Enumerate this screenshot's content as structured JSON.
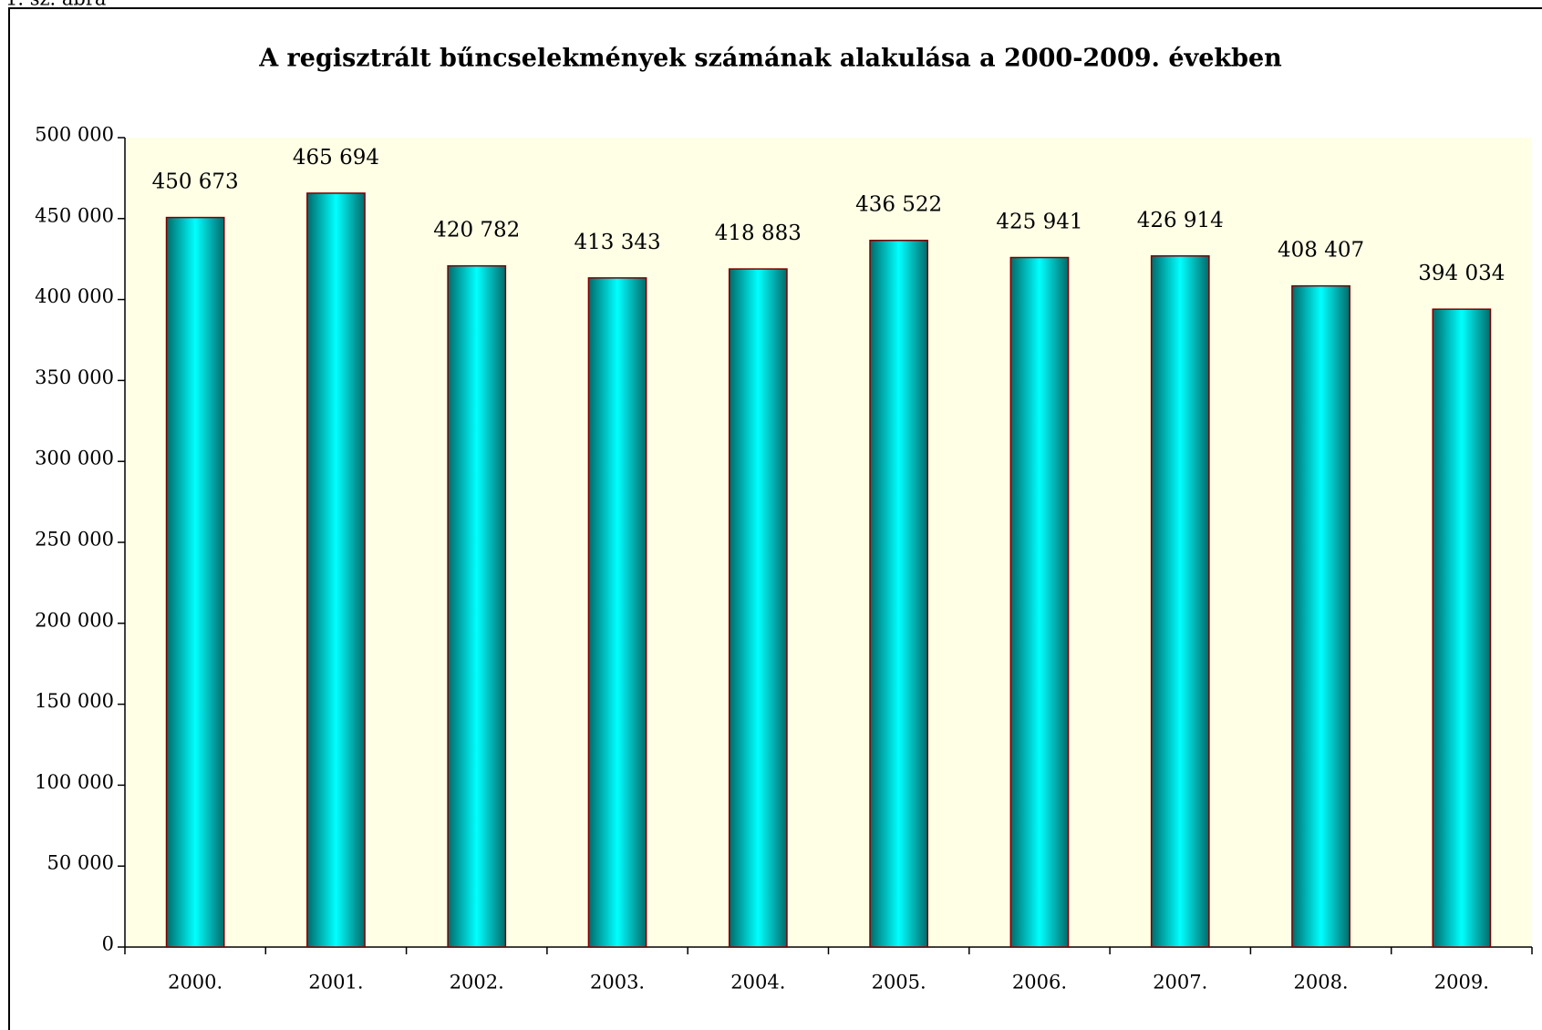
{
  "caption": "1. sz. ábra",
  "chart_data": {
    "type": "bar",
    "title": "A regisztrált bűncselekmények számának alakulása a 2000-2009. években",
    "categories": [
      "2000.",
      "2001.",
      "2002.",
      "2003.",
      "2004.",
      "2005.",
      "2006.",
      "2007.",
      "2008.",
      "2009."
    ],
    "values": [
      450673,
      465694,
      420782,
      413343,
      418883,
      436522,
      425941,
      426914,
      408407,
      394034
    ],
    "value_labels": [
      "450 673",
      "465 694",
      "420 782",
      "413 343",
      "418 883",
      "436 522",
      "425 941",
      "426 914",
      "408 407",
      "394 034"
    ],
    "color": "#00e5e5",
    "ylim": [
      0,
      500000
    ],
    "yticks": [
      {
        "value": 0,
        "label": "0"
      },
      {
        "value": 50000,
        "label": "50 000"
      },
      {
        "value": 100000,
        "label": "100 000"
      },
      {
        "value": 150000,
        "label": "150 000"
      },
      {
        "value": 200000,
        "label": "200 000"
      },
      {
        "value": 250000,
        "label": "250 000"
      },
      {
        "value": 300000,
        "label": "300 000"
      },
      {
        "value": 350000,
        "label": "350 000"
      },
      {
        "value": 400000,
        "label": "400 000"
      },
      {
        "value": 450000,
        "label": "450 000"
      },
      {
        "value": 500000,
        "label": "500 000"
      }
    ],
    "grid": false
  }
}
